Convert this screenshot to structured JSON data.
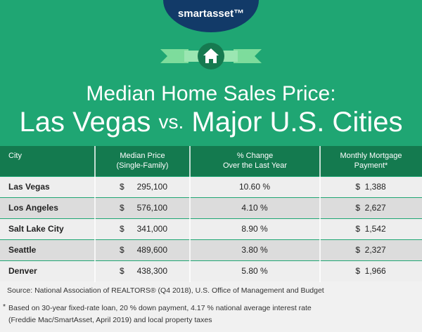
{
  "header": {
    "logo": "smartasset™",
    "title_line1": "Median Home Sales Price:",
    "title_line2": {
      "left": "Las Vegas",
      "middle": "vs.",
      "right": "Major U.S. Cities"
    }
  },
  "table": {
    "columns": [
      [
        "City"
      ],
      [
        "Median Price",
        "(Single-Family)"
      ],
      [
        "% Change",
        "Over the Last Year"
      ],
      [
        "Monthly Mortgage",
        "Payment*"
      ]
    ],
    "rows": [
      [
        "Las Vegas",
        "$",
        "295,100",
        "10.60 %",
        "$  1,388"
      ],
      [
        "Los Angeles",
        "$",
        "576,100",
        "4.10 %",
        "$  2,627"
      ],
      [
        "Salt Lake City",
        "$",
        "341,000",
        "8.90 %",
        "$  1,542"
      ],
      [
        "Seattle",
        "$",
        "489,600",
        "3.80 %",
        "$  2,327"
      ],
      [
        "Denver",
        "$",
        "438,300",
        "5.80 %",
        "$  1,966"
      ]
    ]
  },
  "footer": {
    "source": "Source: National Association of REALTORS® (Q4 2018), U.S. Office of Management and Budget",
    "footnote_mark": "*",
    "footnote_lines": [
      "Based on 30-year fixed-rate loan, 20  % down payment, 4.17  % national average interest rate",
      "(Freddie Mac/SmartAsset, April 2019) and local property taxes"
    ]
  }
}
